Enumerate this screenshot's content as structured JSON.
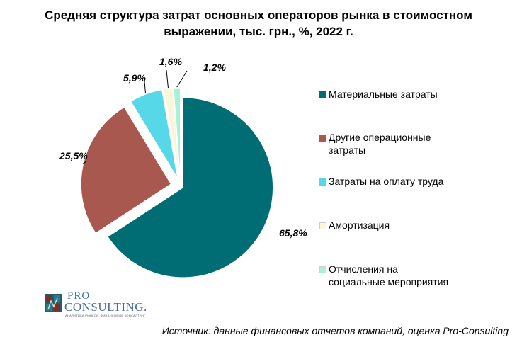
{
  "title_lines": [
    "Средняя структура затрат основных операторов рынка в стоимостном",
    "выражении, тыс. грн., %, 2022 г."
  ],
  "chart_data": {
    "type": "pie",
    "title": "Средняя структура затрат основных операторов рынка в стоимостном выражении, тыс. грн., %, 2022 г.",
    "unit": "%",
    "exploded": true,
    "legend_position": "right",
    "slices": [
      {
        "name": "Материальные затраты",
        "value": 65.8,
        "label": "65,8%",
        "color": "#006d75"
      },
      {
        "name": "Другие операционные затраты",
        "value": 25.5,
        "label": "25,5%",
        "color": "#a9584f"
      },
      {
        "name": "Затраты на оплату труда",
        "value": 5.9,
        "label": "5,9%",
        "color": "#56d8e8"
      },
      {
        "name": "Амортизация",
        "value": 1.6,
        "label": "1,6%",
        "color": "#fbf6d9"
      },
      {
        "name": "Отчисления на социальные мероприятия",
        "value": 1.2,
        "label": "1,2%",
        "color": "#a8f0d6"
      }
    ]
  },
  "legend": [
    {
      "lines": [
        "Материальные затраты"
      ]
    },
    {
      "lines": [
        "Другие операционные",
        "затраты"
      ]
    },
    {
      "lines": [
        "Затраты на оплату труда"
      ]
    },
    {
      "lines": [
        "Амортизация"
      ]
    },
    {
      "lines": [
        "Отчисления на",
        "социальные мероприятия"
      ]
    }
  ],
  "logo": {
    "pro": "PRO",
    "consulting": "CONSULTING.",
    "tagline": "АНАЛИТИКА РЫНКОВ, ФИНАНСОВЫЙ КОНСАЛТИНГ"
  },
  "source": "Источник: данные финансовых отчетов компаний, оценка Pro-Consulting"
}
